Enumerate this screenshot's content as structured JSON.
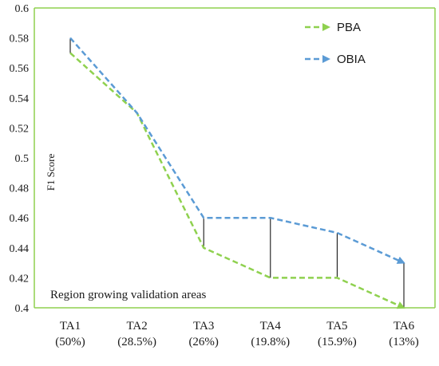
{
  "chart_data": {
    "type": "line",
    "categories": [
      [
        "TA1",
        "(50%)"
      ],
      [
        "TA2",
        "(28.5%)"
      ],
      [
        "TA3",
        "(26%)"
      ],
      [
        "TA4",
        "(19.8%)"
      ],
      [
        "TA5",
        "(15.9%)"
      ],
      [
        "TA6",
        "(13%)"
      ]
    ],
    "series": [
      {
        "name": "PBA",
        "values": [
          0.57,
          0.53,
          0.44,
          0.42,
          0.42,
          0.4
        ],
        "color": "#8fd14f",
        "dash": true,
        "arrow": true
      },
      {
        "name": "OBIA",
        "values": [
          0.58,
          0.53,
          0.46,
          0.46,
          0.45,
          0.43
        ],
        "color": "#5b9bd5",
        "dash": true,
        "arrow": true
      }
    ],
    "difference_lines": true,
    "ylabel": "F1 Score",
    "annotation": "Region growing validation areas",
    "ylim": [
      0.4,
      0.6
    ],
    "yticks": [
      0.4,
      0.42,
      0.44,
      0.46,
      0.48,
      0.5,
      0.52,
      0.54,
      0.56,
      0.58,
      0.6
    ],
    "ytick_labels": [
      "0.4",
      "0.42",
      "0.44",
      "0.46",
      "0.48",
      "0.5",
      "0.52",
      "0.54",
      "0.56",
      "0.58",
      "0.6"
    ],
    "axis_color": "#8fd14f",
    "legend_position": "top-right",
    "grid": false
  }
}
